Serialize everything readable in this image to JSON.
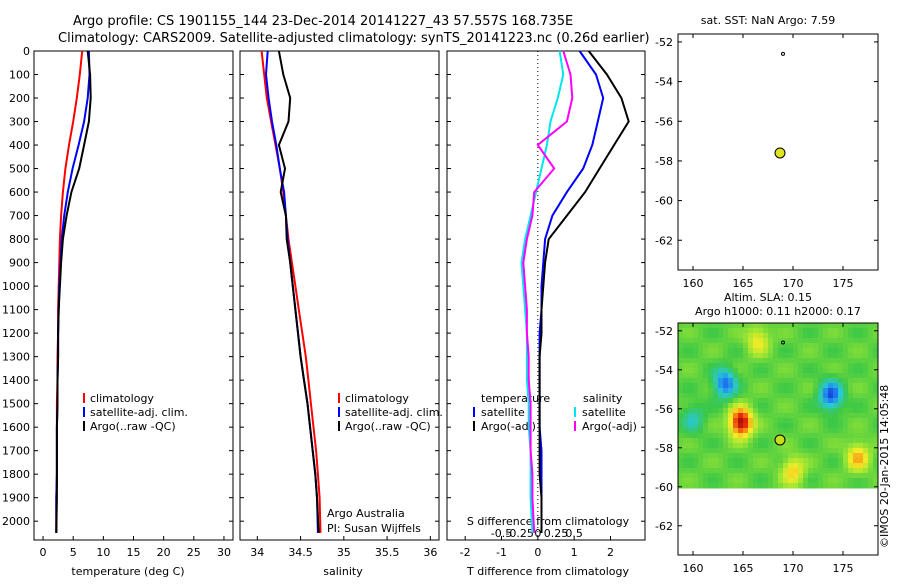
{
  "header": {
    "line1": "Argo profile: CS 1901155_144 23-Dec-2014 20141227_43 57.557S 168.735E",
    "line2": "Climatology: CARS2009. Satellite-adjusted climatology: synTS_20141223.nc (0.26d earlier)"
  },
  "colors": {
    "red": "#ff0000",
    "blue": "#0000ff",
    "black": "#000000",
    "cyan": "#00e5ee",
    "magenta": "#ff00ff"
  },
  "chart_data": [
    {
      "type": "line",
      "id": "temperature",
      "xlabel": "temperature (deg C)",
      "xlim": [
        -1.5,
        31.5
      ],
      "ylim": [
        0,
        2080
      ],
      "xticks": [
        0,
        5,
        10,
        15,
        20,
        25,
        30
      ],
      "yticks": [
        0,
        100,
        200,
        300,
        400,
        500,
        600,
        700,
        800,
        900,
        1000,
        1100,
        1200,
        1300,
        1400,
        1500,
        1600,
        1700,
        1800,
        1900,
        2000
      ],
      "legend": [
        "climatology",
        "satellite-adj. clim.",
        "Argo(..raw -QC)"
      ],
      "series": [
        {
          "name": "climatology",
          "color": "#ff0000",
          "x": [
            6.5,
            6.1,
            5.6,
            5.0,
            4.3,
            3.7,
            3.3,
            3.0,
            2.8,
            2.7,
            2.6,
            2.5,
            2.5,
            2.4,
            2.4,
            2.3,
            2.3,
            2.3,
            2.3,
            2.2,
            2.2
          ],
          "y": [
            0,
            100,
            200,
            300,
            400,
            500,
            600,
            700,
            800,
            900,
            1000,
            1100,
            1200,
            1300,
            1400,
            1500,
            1600,
            1700,
            1800,
            1900,
            2050
          ]
        },
        {
          "name": "satellite-adj. clim.",
          "color": "#0000ff",
          "x": [
            7.6,
            7.7,
            7.4,
            6.8,
            5.9,
            4.9,
            4.1,
            3.5,
            3.1,
            2.9,
            2.7,
            2.6,
            2.5,
            2.5,
            2.4,
            2.4,
            2.3,
            2.3,
            2.3,
            2.2,
            2.2
          ],
          "y": [
            0,
            100,
            200,
            300,
            400,
            500,
            600,
            700,
            800,
            900,
            1000,
            1100,
            1200,
            1300,
            1400,
            1500,
            1600,
            1700,
            1800,
            1900,
            2050
          ]
        },
        {
          "name": "Argo(..raw -QC)",
          "color": "#000000",
          "x": [
            7.4,
            7.8,
            7.9,
            7.6,
            6.8,
            6.0,
            4.7,
            3.9,
            3.3,
            3.0,
            2.8,
            2.6,
            2.5,
            2.5,
            2.4,
            2.4,
            2.3,
            2.3,
            2.3,
            2.3,
            2.2
          ],
          "y": [
            0,
            100,
            200,
            300,
            400,
            500,
            600,
            700,
            800,
            900,
            1000,
            1100,
            1200,
            1300,
            1400,
            1500,
            1600,
            1700,
            1800,
            1900,
            2050
          ]
        }
      ]
    },
    {
      "type": "line",
      "id": "salinity",
      "xlabel": "salinity",
      "xlim": [
        33.8,
        36.1
      ],
      "ylim": [
        0,
        2080
      ],
      "xticks": [
        34,
        34.5,
        35,
        35.5,
        36
      ],
      "legend": [
        "climatology",
        "satellite-adj. clim.",
        "Argo(..raw -QC)"
      ],
      "annotation": [
        "Argo Australia",
        "PI: Susan Wijffels"
      ],
      "series": [
        {
          "name": "climatology",
          "color": "#ff0000",
          "x": [
            34.05,
            34.08,
            34.11,
            34.16,
            34.21,
            34.26,
            34.3,
            34.33,
            34.36,
            34.4,
            34.44,
            34.48,
            34.52,
            34.56,
            34.59,
            34.62,
            34.65,
            34.68,
            34.7,
            34.72,
            34.73
          ],
          "y": [
            0,
            100,
            200,
            300,
            400,
            500,
            600,
            700,
            800,
            900,
            1000,
            1100,
            1200,
            1300,
            1400,
            1500,
            1600,
            1700,
            1800,
            1900,
            2050
          ]
        },
        {
          "name": "satellite-adj. clim.",
          "color": "#0000ff",
          "x": [
            34.12,
            34.1,
            34.13,
            34.17,
            34.22,
            34.26,
            34.31,
            34.33,
            34.35,
            34.38,
            34.41,
            34.44,
            34.47,
            34.5,
            34.54,
            34.58,
            34.61,
            34.64,
            34.67,
            34.69,
            34.7
          ],
          "y": [
            0,
            100,
            200,
            300,
            400,
            500,
            600,
            700,
            800,
            900,
            1000,
            1100,
            1200,
            1300,
            1400,
            1500,
            1600,
            1700,
            1800,
            1900,
            2050
          ]
        },
        {
          "name": "Argo(..raw -QC)",
          "color": "#000000",
          "x": [
            34.25,
            34.3,
            34.38,
            34.36,
            34.25,
            34.32,
            34.27,
            34.33,
            34.34,
            34.38,
            34.41,
            34.44,
            34.47,
            34.5,
            34.54,
            34.58,
            34.61,
            34.64,
            34.67,
            34.69,
            34.71
          ],
          "y": [
            0,
            100,
            200,
            300,
            400,
            500,
            600,
            700,
            800,
            900,
            1000,
            1100,
            1200,
            1300,
            1400,
            1500,
            1600,
            1700,
            1800,
            1900,
            2050
          ]
        }
      ]
    },
    {
      "type": "line",
      "id": "difference",
      "xlabel": "T difference from climatology",
      "xlabel2": "S difference from climatology",
      "xlim": [
        -2.5,
        2.95
      ],
      "ylim": [
        0,
        2080
      ],
      "xticks": [
        -2,
        -1,
        0,
        1,
        2
      ],
      "xticks_s": [
        "-0.5",
        "-0.25",
        "0",
        "0.25",
        "0.5"
      ],
      "legend_headers": [
        "temperature",
        "salinity"
      ],
      "legend_left": [
        "satellite",
        "Argo(-adj)"
      ],
      "legend_right": [
        "satellite",
        "Argo(-adj)"
      ],
      "series": [
        {
          "name": "temperature satellite",
          "color": "#0000ff",
          "x": [
            1.15,
            1.6,
            1.8,
            1.65,
            1.5,
            1.25,
            0.8,
            0.4,
            0.2,
            0.15,
            0.1,
            0.1,
            0.05,
            0.05,
            0.05,
            0.05,
            0.05,
            0.1,
            0.1,
            0.1,
            0.1
          ],
          "y": [
            0,
            100,
            200,
            300,
            400,
            500,
            600,
            700,
            800,
            900,
            1000,
            1100,
            1200,
            1300,
            1400,
            1500,
            1600,
            1700,
            1800,
            1900,
            2050
          ]
        },
        {
          "name": "temperature Argo(-adj)",
          "color": "#000000",
          "x": [
            1.4,
            1.9,
            2.3,
            2.5,
            2.1,
            1.7,
            1.3,
            0.8,
            0.3,
            0.2,
            0.15,
            0.1,
            0.1,
            0.05,
            0.05,
            0.05,
            0.05,
            0.05,
            0.05,
            0.1,
            0.1
          ],
          "y": [
            0,
            100,
            200,
            300,
            400,
            500,
            600,
            700,
            800,
            900,
            1000,
            1100,
            1200,
            1300,
            1400,
            1500,
            1600,
            1700,
            1800,
            1900,
            2050
          ]
        },
        {
          "name": "salinity satellite",
          "color": "#00e5ee",
          "x": [
            0.6,
            0.7,
            0.55,
            0.35,
            0.25,
            0.1,
            -0.05,
            -0.2,
            -0.35,
            -0.45,
            -0.4,
            -0.35,
            -0.3,
            -0.3,
            -0.3,
            -0.25,
            -0.25,
            -0.2,
            -0.2,
            -0.2,
            -0.15
          ],
          "y": [
            0,
            100,
            200,
            300,
            400,
            500,
            600,
            700,
            800,
            900,
            1000,
            1100,
            1200,
            1300,
            1400,
            1500,
            1600,
            1700,
            1800,
            1900,
            2050
          ]
        },
        {
          "name": "salinity Argo(-adj)",
          "color": "#ff00ff",
          "x": [
            0.7,
            0.9,
            0.95,
            0.8,
            0.0,
            0.45,
            -0.1,
            -0.15,
            -0.3,
            -0.4,
            -0.35,
            -0.3,
            -0.3,
            -0.25,
            -0.25,
            -0.2,
            -0.2,
            -0.2,
            -0.15,
            -0.15,
            -0.1
          ],
          "y": [
            0,
            100,
            200,
            300,
            400,
            500,
            600,
            700,
            800,
            900,
            1000,
            1100,
            1200,
            1300,
            1400,
            1500,
            1600,
            1700,
            1800,
            1900,
            2050
          ]
        }
      ]
    },
    {
      "type": "scatter",
      "id": "sst-map",
      "title": "sat. SST: NaN Argo: 7.59",
      "xlim": [
        158.5,
        178.5
      ],
      "ylim": [
        -63.5,
        -51.6
      ],
      "xticks": [
        160,
        165,
        170,
        175
      ],
      "yticks": [
        -52,
        -54,
        -56,
        -58,
        -60,
        -62
      ],
      "points": [
        {
          "x": 168.7,
          "y": -57.6,
          "kind": "argo"
        },
        {
          "x": 169.0,
          "y": -52.6,
          "kind": "small"
        }
      ]
    },
    {
      "type": "heatmap",
      "id": "sla-map",
      "title": "Altim. SLA: 0.15",
      "subtitle": "Argo h1000: 0.11 h2000: 0.17",
      "xlim": [
        158.5,
        178.5
      ],
      "ylim": [
        -63.5,
        -51.6
      ],
      "xticks": [
        160,
        165,
        170,
        175
      ],
      "yticks": [
        -52,
        -54,
        -56,
        -58,
        -60,
        -62
      ],
      "data_extent": {
        "lon": [
          158.5,
          178.5
        ],
        "lat": [
          -60.0,
          -51.6
        ]
      },
      "features": [
        {
          "lon": 164.8,
          "lat": -56.7,
          "value": 0.7
        },
        {
          "lon": 163.2,
          "lat": -54.7,
          "value": -0.45
        },
        {
          "lon": 173.8,
          "lat": -55.3,
          "value": -0.5
        },
        {
          "lon": 166.5,
          "lat": -52.5,
          "value": 0.25
        },
        {
          "lon": 160.0,
          "lat": -56.5,
          "value": -0.2
        },
        {
          "lon": 176.5,
          "lat": -58.5,
          "value": 0.35
        },
        {
          "lon": 170.0,
          "lat": -59.2,
          "value": 0.3
        }
      ],
      "points": [
        {
          "x": 168.7,
          "y": -57.6,
          "kind": "argo"
        },
        {
          "x": 169.0,
          "y": -52.6,
          "kind": "small"
        }
      ]
    }
  ],
  "credit": "©IMOS 20-Jan-2015 14:05:48"
}
